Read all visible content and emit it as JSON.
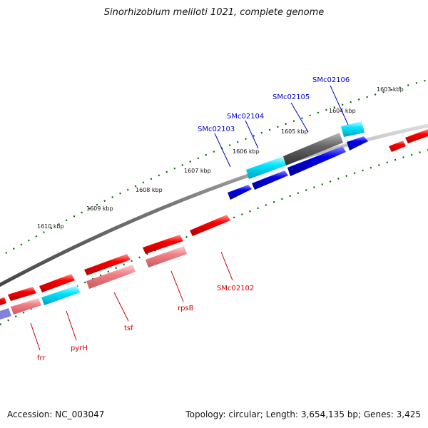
{
  "title": "Sinorhizobium meliloti 1021, complete genome",
  "footer": {
    "accession": "Accession: NC_003047",
    "summary": "Topology: circular; Length: 3,654,135 bp; Genes: 3,425"
  },
  "colors": {
    "red": "#ff0000",
    "pink": "#f07f85",
    "blue": "#0000ee",
    "cyan": "#00e5ff",
    "gray": "#666666",
    "label_blue": "#0000cc",
    "label_red": "#cc0000",
    "tick_green": "#006600"
  },
  "kbp_labels": [
    "1603 kbp",
    "1604 kbp",
    "1605 kbp",
    "1606 kbp",
    "1607 kbp",
    "1608 kbp",
    "1609 kbp",
    "1610 kbp"
  ],
  "gene_labels": [
    "SMc02106",
    "SMc02105",
    "SMc02104",
    "SMc02103",
    "SMc02102",
    "rpsB",
    "tsf",
    "pyrH",
    "frr"
  ]
}
